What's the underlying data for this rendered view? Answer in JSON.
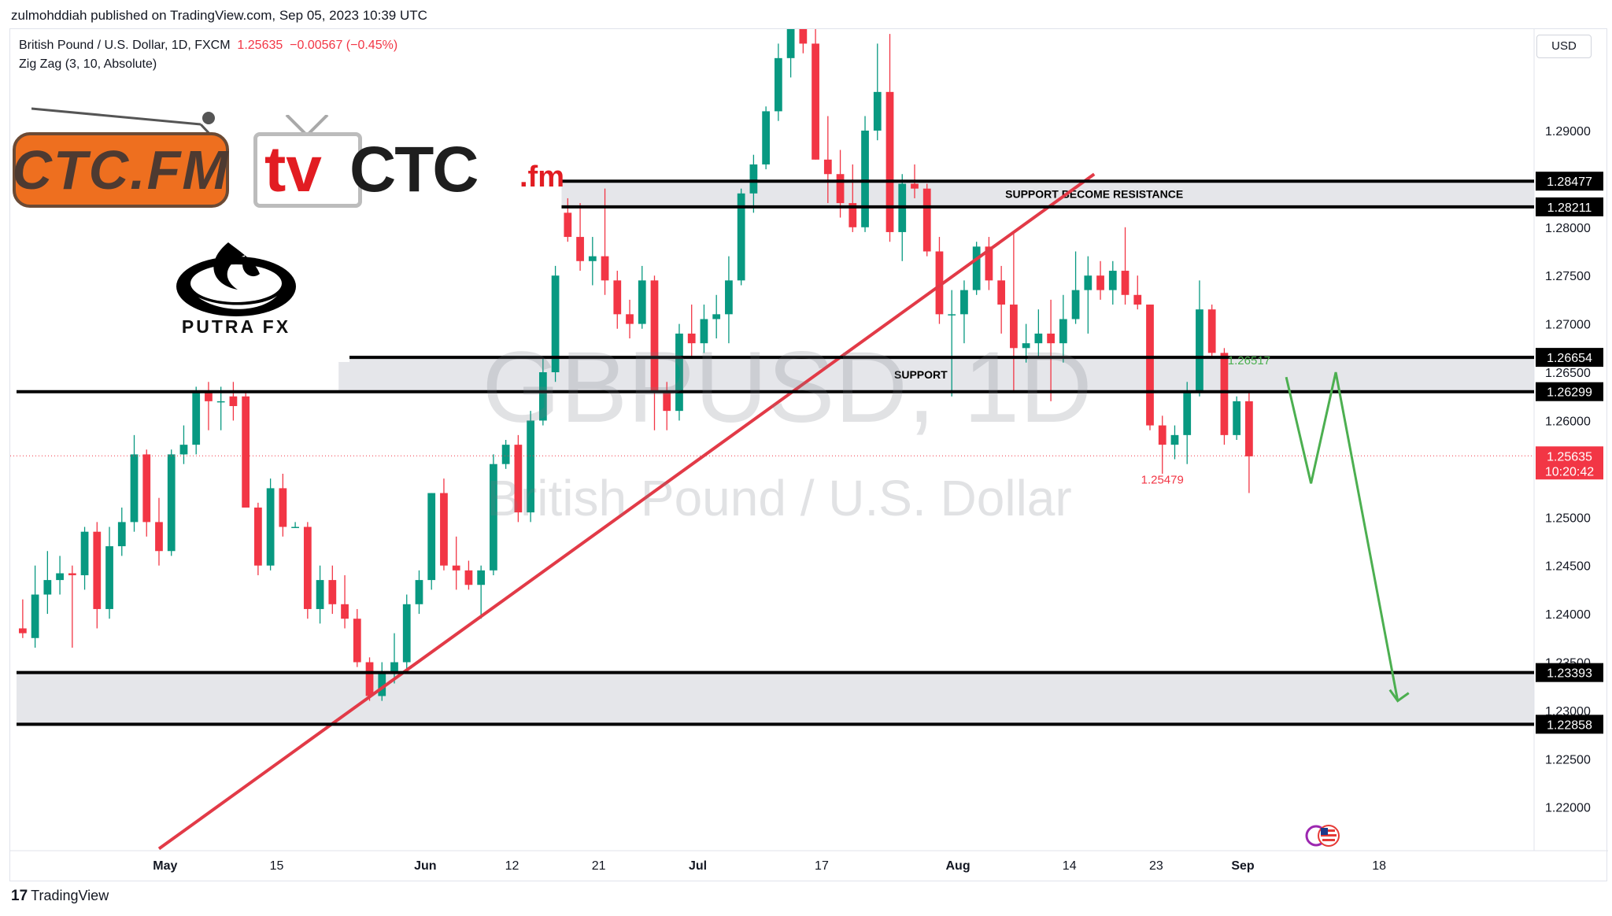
{
  "header": {
    "published_by": "zulmohddiah published on TradingView.com, Sep 05, 2023 10:39 UTC"
  },
  "legend": {
    "title": "British Pound / U.S. Dollar, 1D, FXCM",
    "last_price": "1.25635",
    "change": "−0.00567 (−0.45%)",
    "indicator": "Zig Zag (3, 10, Absolute)"
  },
  "currency": "USD",
  "logos": {
    "ctcfm": "CTC.FM",
    "tvctc_tv": "tv",
    "tvctc_ctc": "CTC",
    "tvctc_fm": ".fm",
    "putra": "PUTRA FX"
  },
  "watermark": {
    "symbol": "GBPUSD, 1D",
    "description": "British Pound / U.S. Dollar"
  },
  "footer": {
    "brand": "TradingView"
  },
  "icons": [
    "tradingview-logo-icon",
    "us-flag-icon",
    "putra-fx-flame-icon"
  ],
  "colors": {
    "up": "#089981",
    "down": "#f23645",
    "trendline": "#e23a47",
    "projection": "#4caf50",
    "zone": "#e5e6ea",
    "level_line": "#000000"
  },
  "chart_data": {
    "type": "candlestick",
    "symbol": "GBPUSD",
    "timeframe": "1D",
    "ylim": [
      1.2155,
      1.3005
    ],
    "y_ticks": [
      "1.22000",
      "1.22500",
      "1.23000",
      "1.23500",
      "1.24000",
      "1.24500",
      "1.25000",
      "1.25500",
      "1.26000",
      "1.26500",
      "1.27000",
      "1.27500",
      "1.28000",
      "1.29000"
    ],
    "x_labels": [
      {
        "label": "May",
        "x": 12
      },
      {
        "label": "15",
        "x": 21
      },
      {
        "label": "Jun",
        "x": 33
      },
      {
        "label": "12",
        "x": 40
      },
      {
        "label": "21",
        "x": 47
      },
      {
        "label": "Jul",
        "x": 55
      },
      {
        "label": "17",
        "x": 65
      },
      {
        "label": "Aug",
        "x": 76
      },
      {
        "label": "14",
        "x": 85
      },
      {
        "label": "23",
        "x": 92
      },
      {
        "label": "Sep",
        "x": 99
      },
      {
        "label": "18",
        "x": 110
      }
    ],
    "x_range": [
      0,
      122
    ],
    "candles": [
      {
        "o": 1.2385,
        "h": 1.2415,
        "l": 1.2375,
        "c": 1.238
      },
      {
        "o": 1.2375,
        "h": 1.245,
        "l": 1.2365,
        "c": 1.242
      },
      {
        "o": 1.242,
        "h": 1.2465,
        "l": 1.24,
        "c": 1.2435
      },
      {
        "o": 1.2435,
        "h": 1.246,
        "l": 1.242,
        "c": 1.2442
      },
      {
        "o": 1.2442,
        "h": 1.245,
        "l": 1.2365,
        "c": 1.244
      },
      {
        "o": 1.244,
        "h": 1.249,
        "l": 1.2425,
        "c": 1.2485
      },
      {
        "o": 1.2485,
        "h": 1.2495,
        "l": 1.2385,
        "c": 1.2405
      },
      {
        "o": 1.2405,
        "h": 1.249,
        "l": 1.2395,
        "c": 1.247
      },
      {
        "o": 1.247,
        "h": 1.251,
        "l": 1.246,
        "c": 1.2495
      },
      {
        "o": 1.2495,
        "h": 1.2585,
        "l": 1.2485,
        "c": 1.2565
      },
      {
        "o": 1.2565,
        "h": 1.257,
        "l": 1.248,
        "c": 1.2495
      },
      {
        "o": 1.2495,
        "h": 1.252,
        "l": 1.245,
        "c": 1.2465
      },
      {
        "o": 1.2465,
        "h": 1.257,
        "l": 1.246,
        "c": 1.2565
      },
      {
        "o": 1.2565,
        "h": 1.2595,
        "l": 1.2555,
        "c": 1.2575
      },
      {
        "o": 1.2575,
        "h": 1.2635,
        "l": 1.2565,
        "c": 1.263
      },
      {
        "o": 1.263,
        "h": 1.264,
        "l": 1.259,
        "c": 1.262
      },
      {
        "o": 1.262,
        "h": 1.2635,
        "l": 1.259,
        "c": 1.262
      },
      {
        "o": 1.2625,
        "h": 1.264,
        "l": 1.26,
        "c": 1.2615
      },
      {
        "o": 1.2625,
        "h": 1.263,
        "l": 1.2515,
        "c": 1.251
      },
      {
        "o": 1.251,
        "h": 1.2515,
        "l": 1.244,
        "c": 1.245
      },
      {
        "o": 1.245,
        "h": 1.254,
        "l": 1.2445,
        "c": 1.253
      },
      {
        "o": 1.253,
        "h": 1.2545,
        "l": 1.248,
        "c": 1.249
      },
      {
        "o": 1.249,
        "h": 1.2495,
        "l": 1.249,
        "c": 1.249
      },
      {
        "o": 1.249,
        "h": 1.2495,
        "l": 1.2395,
        "c": 1.2405
      },
      {
        "o": 1.2405,
        "h": 1.245,
        "l": 1.239,
        "c": 1.2435
      },
      {
        "o": 1.2435,
        "h": 1.245,
        "l": 1.24,
        "c": 1.241
      },
      {
        "o": 1.241,
        "h": 1.244,
        "l": 1.2385,
        "c": 1.2395
      },
      {
        "o": 1.2395,
        "h": 1.2405,
        "l": 1.2345,
        "c": 1.235
      },
      {
        "o": 1.235,
        "h": 1.2355,
        "l": 1.231,
        "c": 1.2315
      },
      {
        "o": 1.2315,
        "h": 1.235,
        "l": 1.231,
        "c": 1.2338
      },
      {
        "o": 1.2338,
        "h": 1.238,
        "l": 1.2328,
        "c": 1.235
      },
      {
        "o": 1.235,
        "h": 1.242,
        "l": 1.234,
        "c": 1.241
      },
      {
        "o": 1.241,
        "h": 1.2445,
        "l": 1.24,
        "c": 1.2435
      },
      {
        "o": 1.2435,
        "h": 1.2525,
        "l": 1.2425,
        "c": 1.2525
      },
      {
        "o": 1.2525,
        "h": 1.254,
        "l": 1.2445,
        "c": 1.245
      },
      {
        "o": 1.245,
        "h": 1.248,
        "l": 1.2425,
        "c": 1.2445
      },
      {
        "o": 1.2445,
        "h": 1.2455,
        "l": 1.2425,
        "c": 1.243
      },
      {
        "o": 1.243,
        "h": 1.245,
        "l": 1.2395,
        "c": 1.2445
      },
      {
        "o": 1.2445,
        "h": 1.2565,
        "l": 1.244,
        "c": 1.2555
      },
      {
        "o": 1.2555,
        "h": 1.258,
        "l": 1.255,
        "c": 1.2575
      },
      {
        "o": 1.2575,
        "h": 1.2585,
        "l": 1.2495,
        "c": 1.2505
      },
      {
        "o": 1.2505,
        "h": 1.261,
        "l": 1.2495,
        "c": 1.26
      },
      {
        "o": 1.26,
        "h": 1.2665,
        "l": 1.2595,
        "c": 1.265
      },
      {
        "o": 1.265,
        "h": 1.276,
        "l": 1.264,
        "c": 1.275
      },
      {
        "o": 1.2815,
        "h": 1.283,
        "l": 1.2785,
        "c": 1.279
      },
      {
        "o": 1.279,
        "h": 1.2825,
        "l": 1.2755,
        "c": 1.2765
      },
      {
        "o": 1.2765,
        "h": 1.279,
        "l": 1.274,
        "c": 1.277
      },
      {
        "o": 1.277,
        "h": 1.284,
        "l": 1.273,
        "c": 1.2745
      },
      {
        "o": 1.2745,
        "h": 1.2755,
        "l": 1.2695,
        "c": 1.271
      },
      {
        "o": 1.271,
        "h": 1.2725,
        "l": 1.2685,
        "c": 1.27
      },
      {
        "o": 1.27,
        "h": 1.276,
        "l": 1.2695,
        "c": 1.2745
      },
      {
        "o": 1.2745,
        "h": 1.275,
        "l": 1.259,
        "c": 1.263
      },
      {
        "o": 1.263,
        "h": 1.264,
        "l": 1.259,
        "c": 1.261
      },
      {
        "o": 1.261,
        "h": 1.27,
        "l": 1.26,
        "c": 1.269
      },
      {
        "o": 1.269,
        "h": 1.272,
        "l": 1.2665,
        "c": 1.268
      },
      {
        "o": 1.268,
        "h": 1.272,
        "l": 1.267,
        "c": 1.2705
      },
      {
        "o": 1.2705,
        "h": 1.273,
        "l": 1.2685,
        "c": 1.271
      },
      {
        "o": 1.271,
        "h": 1.277,
        "l": 1.268,
        "c": 1.2745
      },
      {
        "o": 1.2745,
        "h": 1.284,
        "l": 1.274,
        "c": 1.2835
      },
      {
        "o": 1.2835,
        "h": 1.2875,
        "l": 1.2815,
        "c": 1.2865
      },
      {
        "o": 1.2865,
        "h": 1.2925,
        "l": 1.286,
        "c": 1.292
      },
      {
        "o": 1.292,
        "h": 1.299,
        "l": 1.291,
        "c": 1.2975
      },
      {
        "o": 1.2975,
        "h": 1.301,
        "l": 1.2955,
        "c": 1.3005
      },
      {
        "o": 1.3005,
        "h": 1.3005,
        "l": 1.298,
        "c": 1.299
      },
      {
        "o": 1.299,
        "h": 1.3005,
        "l": 1.287,
        "c": 1.287
      },
      {
        "o": 1.287,
        "h": 1.2915,
        "l": 1.2825,
        "c": 1.2855
      },
      {
        "o": 1.2855,
        "h": 1.288,
        "l": 1.281,
        "c": 1.2825
      },
      {
        "o": 1.2825,
        "h": 1.2865,
        "l": 1.2795,
        "c": 1.28
      },
      {
        "o": 1.28,
        "h": 1.2915,
        "l": 1.2795,
        "c": 1.29
      },
      {
        "o": 1.29,
        "h": 1.299,
        "l": 1.289,
        "c": 1.294
      },
      {
        "o": 1.294,
        "h": 1.3,
        "l": 1.2785,
        "c": 1.2795
      },
      {
        "o": 1.2795,
        "h": 1.2855,
        "l": 1.2765,
        "c": 1.2845
      },
      {
        "o": 1.2845,
        "h": 1.2865,
        "l": 1.283,
        "c": 1.284
      },
      {
        "o": 1.284,
        "h": 1.2845,
        "l": 1.277,
        "c": 1.2775
      },
      {
        "o": 1.2775,
        "h": 1.279,
        "l": 1.27,
        "c": 1.271
      },
      {
        "o": 1.271,
        "h": 1.2735,
        "l": 1.2625,
        "c": 1.271
      },
      {
        "o": 1.271,
        "h": 1.2745,
        "l": 1.268,
        "c": 1.2735
      },
      {
        "o": 1.2735,
        "h": 1.2785,
        "l": 1.273,
        "c": 1.278
      },
      {
        "o": 1.278,
        "h": 1.279,
        "l": 1.2735,
        "c": 1.2745
      },
      {
        "o": 1.2745,
        "h": 1.276,
        "l": 1.269,
        "c": 1.272
      },
      {
        "o": 1.272,
        "h": 1.2795,
        "l": 1.263,
        "c": 1.2675
      },
      {
        "o": 1.2675,
        "h": 1.27,
        "l": 1.266,
        "c": 1.268
      },
      {
        "o": 1.268,
        "h": 1.2715,
        "l": 1.2665,
        "c": 1.269
      },
      {
        "o": 1.269,
        "h": 1.2725,
        "l": 1.262,
        "c": 1.268
      },
      {
        "o": 1.268,
        "h": 1.273,
        "l": 1.266,
        "c": 1.2705
      },
      {
        "o": 1.2705,
        "h": 1.2775,
        "l": 1.27,
        "c": 1.2735
      },
      {
        "o": 1.2735,
        "h": 1.277,
        "l": 1.269,
        "c": 1.275
      },
      {
        "o": 1.275,
        "h": 1.2765,
        "l": 1.2725,
        "c": 1.2735
      },
      {
        "o": 1.2735,
        "h": 1.2765,
        "l": 1.272,
        "c": 1.2755
      },
      {
        "o": 1.2755,
        "h": 1.28,
        "l": 1.272,
        "c": 1.273
      },
      {
        "o": 1.273,
        "h": 1.275,
        "l": 1.2715,
        "c": 1.272
      },
      {
        "o": 1.272,
        "h": 1.272,
        "l": 1.259,
        "c": 1.2595
      },
      {
        "o": 1.2595,
        "h": 1.2605,
        "l": 1.2545,
        "c": 1.2575
      },
      {
        "o": 1.2575,
        "h": 1.2595,
        "l": 1.256,
        "c": 1.2585
      },
      {
        "o": 1.2585,
        "h": 1.264,
        "l": 1.2555,
        "c": 1.263
      },
      {
        "o": 1.263,
        "h": 1.2745,
        "l": 1.2625,
        "c": 1.2715
      },
      {
        "o": 1.2715,
        "h": 1.272,
        "l": 1.2665,
        "c": 1.267
      },
      {
        "o": 1.267,
        "h": 1.2675,
        "l": 1.2575,
        "c": 1.2585
      },
      {
        "o": 1.2585,
        "h": 1.2625,
        "l": 1.258,
        "c": 1.262
      },
      {
        "o": 1.262,
        "h": 1.263,
        "l": 1.2525,
        "c": 1.2563
      }
    ],
    "levels": [
      {
        "price": 1.28477,
        "label": "1.28477",
        "from_x": 44
      },
      {
        "price": 1.28211,
        "label": "1.28211",
        "from_x": 44
      },
      {
        "price": 1.26654,
        "label": "1.26654",
        "from_x": 0
      },
      {
        "price": 1.26299,
        "label": "1.26299",
        "from_x": 0
      },
      {
        "price": 1.23393,
        "label": "1.23393",
        "from_x": 0
      },
      {
        "price": 1.22858,
        "label": "1.22858",
        "from_x": 0
      }
    ],
    "zones": [
      {
        "from": 1.28211,
        "to": 1.28477,
        "from_x": 44,
        "label": "SUPPORT BECOME RESISTANCE",
        "label_x": 87
      },
      {
        "from": 1.26299,
        "to": 1.26654,
        "from_x": 26,
        "label": "SUPPORT",
        "label_x": 73
      },
      {
        "from": 1.22858,
        "to": 1.23393,
        "from_x": 0,
        "label": ""
      }
    ],
    "trendline": [
      {
        "x": 11.5,
        "y": 1.2157
      },
      {
        "x": 87,
        "y": 1.2855
      }
    ],
    "projection": [
      {
        "x": 102.5,
        "y": 1.2645
      },
      {
        "x": 104.5,
        "y": 1.2535
      },
      {
        "x": 106.5,
        "y": 1.265
      },
      {
        "x": 111.5,
        "y": 1.231
      }
    ],
    "current_price": {
      "label": "1.25635",
      "countdown": "10:20:42",
      "price": 1.25635
    },
    "annotations": [
      {
        "text": "1.25479",
        "x": 92.5,
        "y": 1.2535
      },
      {
        "text": "1.26517",
        "x": 99.5,
        "y": 1.2658
      }
    ]
  }
}
